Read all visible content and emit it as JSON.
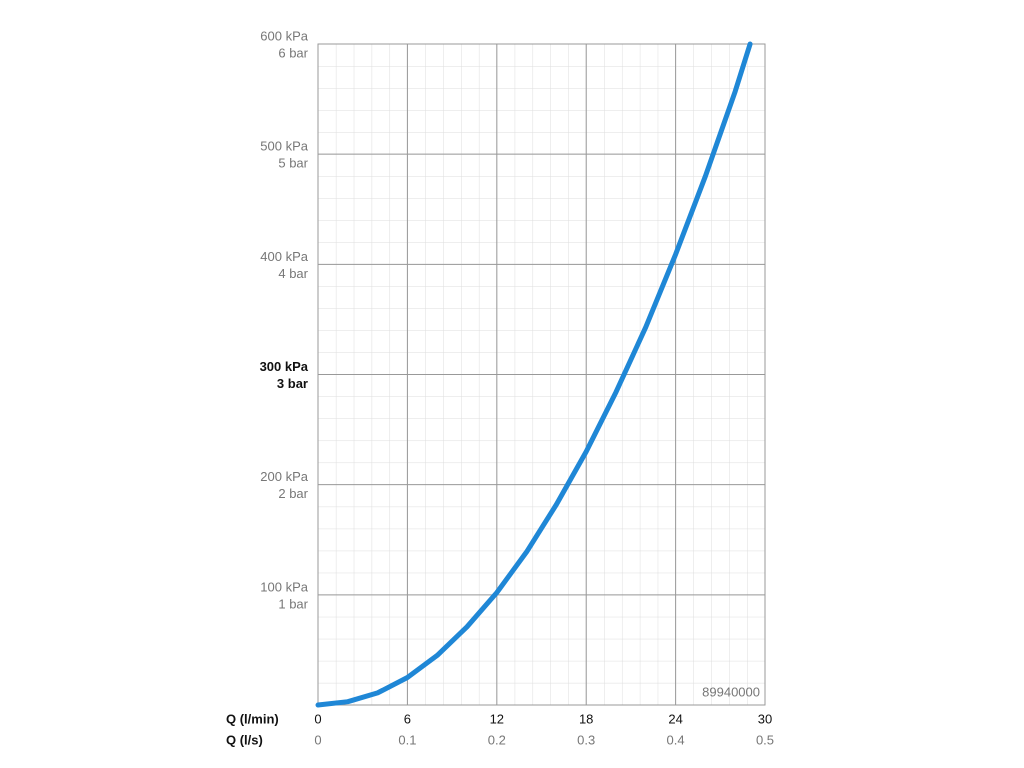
{
  "chart_data": {
    "type": "line",
    "x": [
      0,
      2,
      4,
      6,
      8,
      10,
      12,
      14,
      16,
      18,
      20,
      22,
      24,
      26,
      28,
      29
    ],
    "values": [
      0,
      3,
      11,
      25,
      45,
      71,
      102,
      139,
      182,
      230,
      284,
      343,
      409,
      480,
      557,
      600
    ],
    "color": "#1f87d6",
    "xlabel": "Q (l/min)",
    "x2label": "Q (l/s)",
    "xlim": [
      0,
      30
    ],
    "xticks": [
      0,
      6,
      12,
      18,
      24,
      30
    ],
    "x2lim": [
      0,
      0.5
    ],
    "x2ticks": [
      0,
      0.1,
      0.2,
      0.3,
      0.4,
      0.5
    ],
    "ylim": [
      0,
      600
    ],
    "yticks": [
      {
        "value": 100,
        "label": "100 kPa"
      },
      {
        "value": 200,
        "label": "200 kPa"
      },
      {
        "value": 300,
        "label": "300 kPa"
      },
      {
        "value": 400,
        "label": "400 kPa"
      },
      {
        "value": 500,
        "label": "500 kPa"
      },
      {
        "value": 600,
        "label": "600 kPa"
      }
    ],
    "y2lim": [
      0,
      6
    ],
    "y2ticks": [
      {
        "value": 1,
        "label": "1 bar"
      },
      {
        "value": 2,
        "label": "2 bar"
      },
      {
        "value": 3,
        "label": "3 bar"
      },
      {
        "value": 4,
        "label": "4 bar"
      },
      {
        "value": 5,
        "label": "5 bar"
      },
      {
        "value": 6,
        "label": "6 bar"
      }
    ],
    "annotation": "89940000",
    "grid": true
  }
}
